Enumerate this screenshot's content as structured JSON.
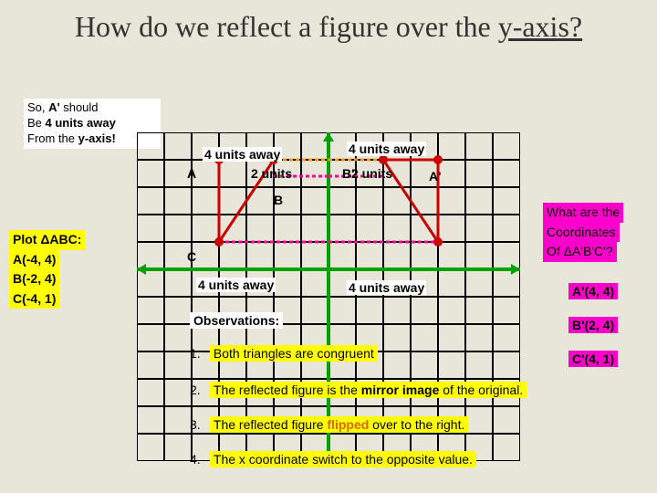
{
  "title_part1": "How do we reflect a figure over the ",
  "title_part2": "y-axis?",
  "callout1": {
    "l1": "So, ",
    "l1b": "A'",
    "l1c": " should",
    "l2": "Be ",
    "l2b": "4 units away",
    "l3": "From the ",
    "l3b": "y-axis!"
  },
  "plot": {
    "head": "Plot ΔABC:",
    "a": "A(-4, 4)",
    "b": "B(-2, 4)",
    "c": "C(-4, 1)"
  },
  "coords_q": {
    "l1": "What are the",
    "l2": "Coordinates",
    "l3": "Of ΔA'B'C'?"
  },
  "answers": {
    "a": "A'(4, 4)",
    "b": "B'(2, 4)",
    "c": "C'(4, 1)"
  },
  "labels": {
    "u4_1": "4 units away",
    "u4_2": "4 units away",
    "u2_1": "2 units",
    "u2_2": "2 units",
    "u4_3": "4 units away",
    "u4_4": "4 units away",
    "A": "A",
    "B": "B",
    "C": "C",
    "Bp": "B'",
    "Ap": "A'",
    "obs_head": "Observations:"
  },
  "obs": {
    "o1": "Both triangles are congruent",
    "o2_a": "The reflected figure is the ",
    "o2_b": "mirror image",
    "o2_c": " of the original.",
    "o3_a": "The reflected figure ",
    "o3_b": "flipped",
    "o3_c": " over to the right.",
    "o4": "The x coordinate switch to the opposite value."
  },
  "grid": {
    "cols": 14,
    "rows": 12,
    "cell": 30,
    "line_color": "#000000",
    "line_w": 2,
    "axis_x_row": 5,
    "axis_y_col": 7,
    "axis_color": "#00a000",
    "axis_w": 4,
    "tri1": {
      "stroke": "#cc0000",
      "fill": "none",
      "w": 3,
      "pts": [
        [
          3,
          1
        ],
        [
          5,
          1
        ],
        [
          3,
          4
        ]
      ]
    },
    "tri2": {
      "stroke": "#cc0000",
      "fill": "none",
      "w": 3,
      "pts": [
        [
          11,
          1
        ],
        [
          9,
          1
        ],
        [
          11,
          4
        ]
      ]
    },
    "points": [
      {
        "c": 3,
        "r": 1,
        "color": "#cc0000"
      },
      {
        "c": 5,
        "r": 1,
        "color": "#cc0000"
      },
      {
        "c": 3,
        "r": 4,
        "color": "#cc0000"
      },
      {
        "c": 11,
        "r": 1,
        "color": "#cc0000"
      },
      {
        "c": 9,
        "r": 1,
        "color": "#cc0000"
      },
      {
        "c": 11,
        "r": 4,
        "color": "#cc0000"
      }
    ],
    "hlines": [
      {
        "r": 1,
        "c1": 3,
        "c2": 7,
        "color": "#ff9900"
      },
      {
        "r": 1,
        "c1": 7,
        "c2": 11,
        "color": "#ff9900"
      },
      {
        "r": 4,
        "c1": 3,
        "c2": 7,
        "color": "#ff0099"
      },
      {
        "r": 4,
        "c1": 7,
        "c2": 11,
        "color": "#ff0099"
      },
      {
        "r": 1.6,
        "c1": 5,
        "c2": 7,
        "color": "#ff0099"
      },
      {
        "r": 1.6,
        "c1": 7,
        "c2": 9,
        "color": "#ff0099"
      }
    ]
  },
  "colors": {
    "bg": "#e8e6d8",
    "yellow": "#ffff00",
    "magenta": "#ff00cc",
    "red": "#cc0000",
    "green": "#00a000",
    "blue": "#001aff",
    "orange": "#d46a00"
  }
}
